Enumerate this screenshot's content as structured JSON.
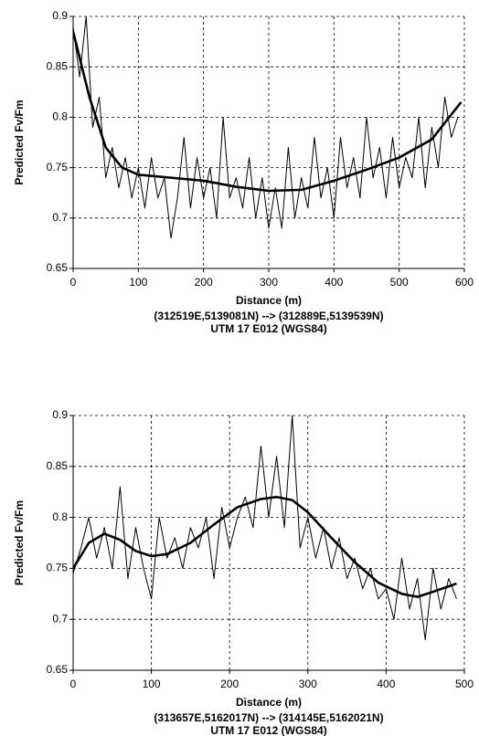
{
  "chart_data": [
    {
      "type": "line",
      "xlabel": "Distance (m)",
      "ylabel": "Predicted Fv/Fm",
      "annotations": [
        "(312519E,5139081N) --> (312889E,5139539N)",
        "UTM 17 E012 (WGS84)"
      ],
      "xlim": [
        0,
        600
      ],
      "ylim": [
        0.65,
        0.9
      ],
      "xticks": [
        0,
        100,
        200,
        300,
        400,
        500,
        600
      ],
      "yticks": [
        0.65,
        0.7,
        0.75,
        0.8,
        0.85,
        0.9
      ],
      "grid": true,
      "series": [
        {
          "color": "#000000",
          "x": [
            0,
            10,
            20,
            30,
            40,
            50,
            60,
            70,
            80,
            90,
            100,
            110,
            120,
            130,
            140,
            150,
            160,
            170,
            180,
            190,
            200,
            210,
            220,
            230,
            240,
            250,
            260,
            270,
            280,
            290,
            300,
            310,
            320,
            330,
            340,
            350,
            360,
            370,
            380,
            390,
            400,
            410,
            420,
            430,
            440,
            450,
            460,
            470,
            480,
            490,
            500,
            510,
            520,
            530,
            540,
            550,
            560,
            570,
            580,
            590
          ],
          "values": [
            0.89,
            0.84,
            0.9,
            0.79,
            0.82,
            0.74,
            0.77,
            0.73,
            0.76,
            0.72,
            0.75,
            0.71,
            0.76,
            0.72,
            0.74,
            0.68,
            0.72,
            0.78,
            0.71,
            0.76,
            0.72,
            0.75,
            0.7,
            0.8,
            0.72,
            0.74,
            0.71,
            0.76,
            0.7,
            0.74,
            0.69,
            0.73,
            0.69,
            0.77,
            0.7,
            0.74,
            0.71,
            0.78,
            0.72,
            0.75,
            0.7,
            0.78,
            0.73,
            0.76,
            0.72,
            0.8,
            0.74,
            0.77,
            0.72,
            0.78,
            0.73,
            0.76,
            0.74,
            0.8,
            0.73,
            0.79,
            0.75,
            0.82,
            0.78,
            0.8
          ]
        },
        {
          "color": "#000000",
          "x": [
            0,
            25,
            50,
            75,
            100,
            150,
            200,
            250,
            300,
            350,
            400,
            450,
            500,
            550,
            595
          ],
          "values": [
            0.885,
            0.82,
            0.77,
            0.75,
            0.743,
            0.74,
            0.737,
            0.731,
            0.727,
            0.728,
            0.737,
            0.748,
            0.76,
            0.778,
            0.815
          ]
        }
      ]
    },
    {
      "type": "line",
      "xlabel": "Distance (m)",
      "ylabel": "Predicted Fv/Fm",
      "annotations": [
        "(313657E,5162017N) --> (314145E,5162021N)",
        "UTM 17 E012 (WGS84)"
      ],
      "xlim": [
        0,
        500
      ],
      "ylim": [
        0.65,
        0.9
      ],
      "xticks": [
        0,
        100,
        200,
        300,
        400,
        500
      ],
      "yticks": [
        0.65,
        0.7,
        0.75,
        0.8,
        0.85,
        0.9
      ],
      "grid": true,
      "series": [
        {
          "color": "#000000",
          "x": [
            0,
            10,
            20,
            30,
            40,
            50,
            60,
            70,
            80,
            90,
            100,
            110,
            120,
            130,
            140,
            150,
            160,
            170,
            180,
            190,
            200,
            210,
            220,
            230,
            240,
            250,
            260,
            270,
            280,
            290,
            300,
            310,
            320,
            330,
            340,
            350,
            360,
            370,
            380,
            390,
            400,
            410,
            420,
            430,
            440,
            450,
            460,
            470,
            480,
            490
          ],
          "values": [
            0.745,
            0.77,
            0.8,
            0.76,
            0.79,
            0.75,
            0.83,
            0.74,
            0.79,
            0.75,
            0.72,
            0.8,
            0.76,
            0.78,
            0.75,
            0.79,
            0.77,
            0.8,
            0.74,
            0.81,
            0.77,
            0.8,
            0.82,
            0.79,
            0.87,
            0.8,
            0.86,
            0.79,
            0.9,
            0.77,
            0.8,
            0.76,
            0.79,
            0.75,
            0.78,
            0.74,
            0.76,
            0.73,
            0.75,
            0.72,
            0.73,
            0.7,
            0.76,
            0.71,
            0.74,
            0.68,
            0.75,
            0.71,
            0.74,
            0.72
          ]
        },
        {
          "color": "#000000",
          "x": [
            0,
            20,
            40,
            60,
            80,
            100,
            120,
            150,
            180,
            210,
            240,
            260,
            280,
            300,
            330,
            360,
            390,
            420,
            440,
            460,
            490
          ],
          "values": [
            0.75,
            0.775,
            0.784,
            0.778,
            0.767,
            0.762,
            0.764,
            0.775,
            0.793,
            0.81,
            0.818,
            0.82,
            0.817,
            0.805,
            0.78,
            0.756,
            0.736,
            0.725,
            0.722,
            0.727,
            0.735
          ]
        }
      ]
    }
  ]
}
